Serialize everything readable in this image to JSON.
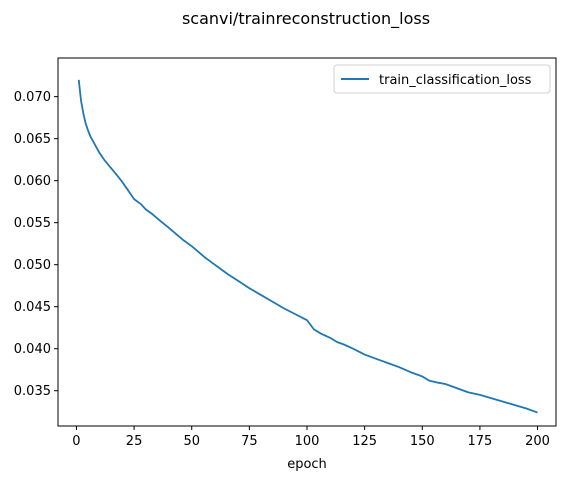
{
  "chart_data": {
    "type": "line",
    "title": "scanvi/trainreconstruction_loss",
    "xlabel": "epoch",
    "ylabel": "",
    "xlim": [
      -8,
      208
    ],
    "ylim": [
      0.0308,
      0.0746
    ],
    "xticks": [
      0,
      25,
      50,
      75,
      100,
      125,
      150,
      175,
      200
    ],
    "yticks": [
      0.035,
      0.04,
      0.045,
      0.05,
      0.055,
      0.06,
      0.065,
      0.07
    ],
    "ytick_labels": [
      "0.035",
      "0.040",
      "0.045",
      "0.050",
      "0.055",
      "0.060",
      "0.065",
      "0.070"
    ],
    "grid": false,
    "legend_position": "top-right",
    "series": [
      {
        "name": "train_classification_loss",
        "color": "#1f77b4",
        "x": [
          1,
          2,
          3,
          4,
          5,
          6,
          8,
          10,
          12,
          15,
          18,
          20,
          22,
          25,
          28,
          30,
          33,
          36,
          40,
          43,
          46,
          50,
          53,
          56,
          60,
          63,
          66,
          70,
          75,
          80,
          85,
          90,
          95,
          100,
          103,
          106,
          110,
          113,
          116,
          120,
          125,
          130,
          135,
          140,
          145,
          150,
          153,
          156,
          160,
          163,
          166,
          170,
          175,
          180,
          185,
          190,
          195,
          200
        ],
        "y": [
          0.072,
          0.0695,
          0.068,
          0.0668,
          0.066,
          0.0653,
          0.0643,
          0.0633,
          0.0625,
          0.0615,
          0.0605,
          0.0598,
          0.059,
          0.0578,
          0.0572,
          0.0566,
          0.056,
          0.0553,
          0.0544,
          0.0537,
          0.053,
          0.0522,
          0.0515,
          0.0508,
          0.05,
          0.0494,
          0.0488,
          0.0481,
          0.0472,
          0.0464,
          0.0456,
          0.0448,
          0.0441,
          0.0434,
          0.0423,
          0.0418,
          0.0413,
          0.0408,
          0.0405,
          0.04,
          0.0393,
          0.0388,
          0.0383,
          0.0378,
          0.0372,
          0.0367,
          0.0362,
          0.036,
          0.0358,
          0.0355,
          0.0352,
          0.0348,
          0.0345,
          0.0341,
          0.0337,
          0.0333,
          0.0329,
          0.0324
        ]
      }
    ]
  }
}
